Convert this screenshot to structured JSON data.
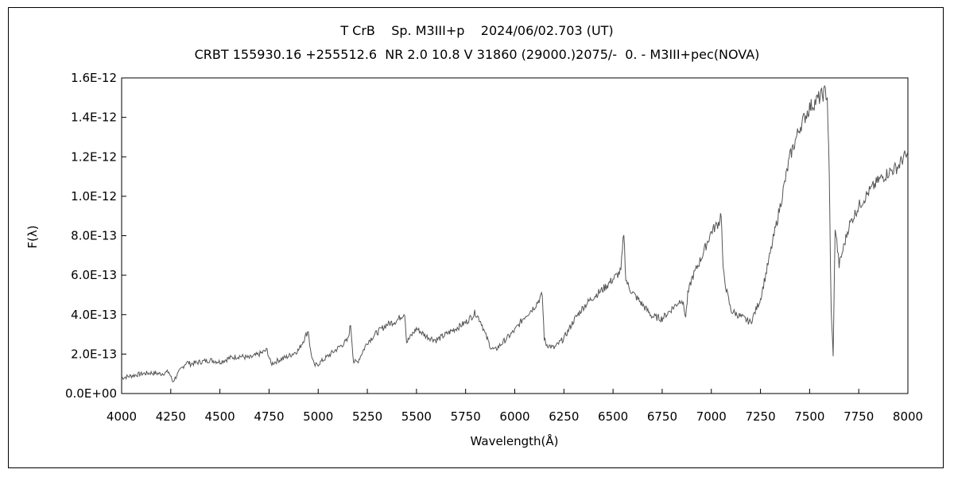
{
  "chart_data": {
    "type": "line",
    "title": "T CrB    Sp. M3III+p    2024/06/02.703 (UT)",
    "subtitle": "CRBT 155930.16 +255512.6  NR 2.0 10.8 V 31860 (29000.)2075/-  0. - M3III+pec(NOVA)",
    "xlabel": "Wavelength(Å)",
    "ylabel": "F(λ)",
    "xlim": [
      4000,
      8000
    ],
    "ylim": [
      0,
      1.6e-12
    ],
    "x_ticks": [
      "4000",
      "4250",
      "4500",
      "4750",
      "5000",
      "5250",
      "5500",
      "5750",
      "6000",
      "6250",
      "6500",
      "6750",
      "7000",
      "7250",
      "7500",
      "7750",
      "8000"
    ],
    "y_ticks": [
      "0.0E+00",
      "2.0E-13",
      "4.0E-13",
      "6.0E-13",
      "8.0E-13",
      "1.0E-12",
      "1.2E-12",
      "1.4E-12",
      "1.6E-12"
    ],
    "y_tick_values": [
      0,
      2e-13,
      4e-13,
      6e-13,
      8e-13,
      1e-12,
      1.2e-12,
      1.4e-12,
      1.6e-12
    ],
    "grid": false,
    "legend": "none",
    "line_color": "#555555",
    "series": [
      {
        "x": [
          4000,
          4050,
          4100,
          4150,
          4200,
          4240,
          4260,
          4300,
          4330,
          4350,
          4400,
          4450,
          4500,
          4550,
          4600,
          4650,
          4700,
          4740,
          4760,
          4800,
          4850,
          4900,
          4930,
          4950,
          4960,
          4980,
          5000,
          5050,
          5100,
          5150,
          5165,
          5180,
          5200,
          5250,
          5300,
          5350,
          5400,
          5420,
          5440,
          5450,
          5500,
          5550,
          5600,
          5650,
          5700,
          5750,
          5800,
          5830,
          5850,
          5880,
          5900,
          5950,
          6000,
          6050,
          6100,
          6140,
          6150,
          6160,
          6200,
          6250,
          6300,
          6350,
          6400,
          6450,
          6500,
          6540,
          6555,
          6565,
          6580,
          6600,
          6650,
          6700,
          6750,
          6800,
          6850,
          6870,
          6880,
          6900,
          6950,
          7000,
          7040,
          7050,
          7060,
          7080,
          7100,
          7150,
          7200,
          7250,
          7300,
          7350,
          7400,
          7450,
          7500,
          7550,
          7580,
          7590,
          7600,
          7610,
          7620,
          7630,
          7650,
          7700,
          7750,
          7800,
          7850,
          7900,
          7950,
          7980,
          8000
        ],
        "y": [
          8e-14,
          9e-14,
          1e-13,
          1.05e-13,
          1e-13,
          1.1e-13,
          6e-14,
          1.2e-13,
          1.6e-13,
          1.5e-13,
          1.6e-13,
          1.7e-13,
          1.6e-13,
          1.8e-13,
          1.9e-13,
          1.8e-13,
          2e-13,
          2.2e-13,
          1.5e-13,
          1.7e-13,
          1.9e-13,
          2.2e-13,
          2.8e-13,
          3.2e-13,
          2.2e-13,
          1.4e-13,
          1.5e-13,
          1.9e-13,
          2.3e-13,
          2.7e-13,
          3.5e-13,
          1.6e-13,
          1.6e-13,
          2.6e-13,
          3.1e-13,
          3.5e-13,
          3.7e-13,
          3.9e-13,
          4.1e-13,
          2.6e-13,
          3.3e-13,
          2.9e-13,
          2.7e-13,
          3e-13,
          3.3e-13,
          3.6e-13,
          4.1e-13,
          3.6e-13,
          3e-13,
          2.3e-13,
          2.2e-13,
          2.7e-13,
          3.2e-13,
          3.9e-13,
          4.4e-13,
          5e-13,
          2.8e-13,
          2.5e-13,
          2.3e-13,
          2.8e-13,
          3.7e-13,
          4.4e-13,
          4.9e-13,
          5.3e-13,
          5.8e-13,
          6.2e-13,
          8.2e-13,
          5.8e-13,
          5.4e-13,
          5.1e-13,
          4.5e-13,
          3.9e-13,
          3.8e-13,
          4.3e-13,
          4.8e-13,
          3.9e-13,
          5e-13,
          5.8e-13,
          6.9e-13,
          8.2e-13,
          8.7e-13,
          9.2e-13,
          6.2e-13,
          5.1e-13,
          4.2e-13,
          3.9e-13,
          3.6e-13,
          4.8e-13,
          7.1e-13,
          9.5e-13,
          1.2e-12,
          1.35e-12,
          1.45e-12,
          1.5e-12,
          1.53e-12,
          1.5e-12,
          1.1e-12,
          4e-13,
          2e-13,
          8.5e-13,
          6.5e-13,
          8.5e-13,
          9.5e-13,
          1.02e-12,
          1.08e-12,
          1.12e-12,
          1.15e-12,
          1.2e-12,
          1.2e-12
        ]
      }
    ]
  }
}
